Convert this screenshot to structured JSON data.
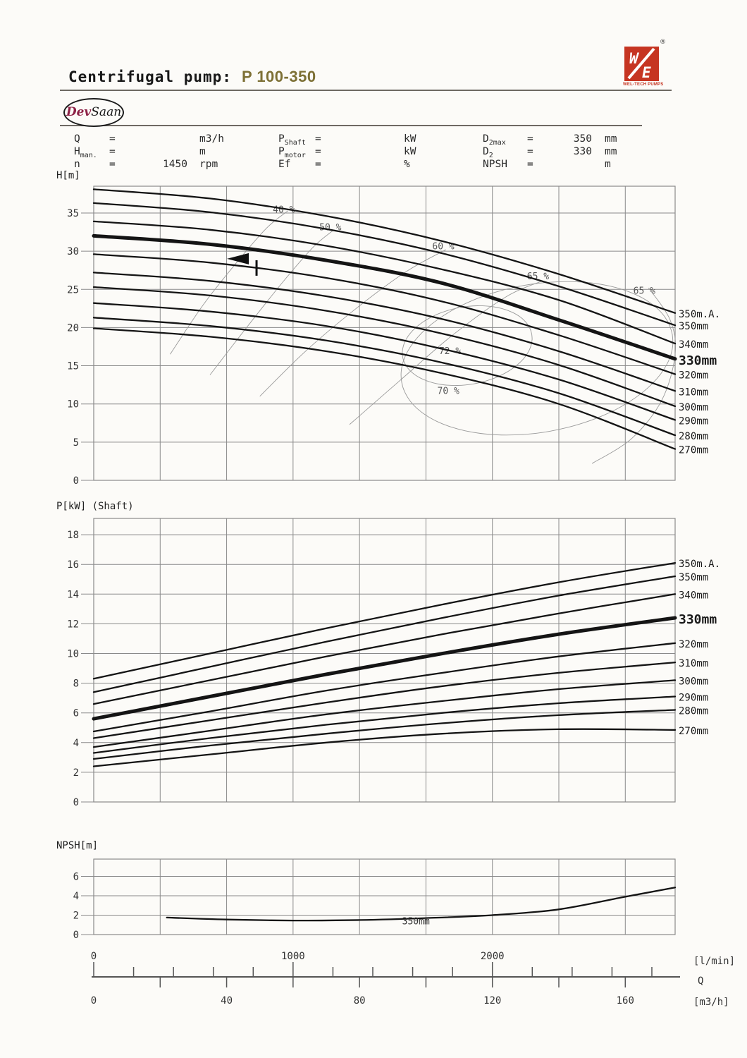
{
  "header": {
    "title": "Centrifugal pump:",
    "model": "P 100-350"
  },
  "brand": {
    "oval_logo_part1": "Dev",
    "oval_logo_part2": "Saan",
    "corner_logo_caption": "WEL-TECH PUMPS",
    "registered_mark": "®"
  },
  "colors": {
    "model_accent": "#7d7035",
    "logo_red": "#c63522",
    "devsaan_red": "#8d2146",
    "curve": "#141414",
    "grid": "#8a8a8a",
    "contour": "#9a9a9a"
  },
  "params": {
    "rows": [
      [
        {
          "base": "Q",
          "sub": "",
          "eq": "=",
          "value": "",
          "unit": "m3/h"
        },
        {
          "base": "P",
          "sub": "Shaft",
          "eq": "=",
          "value": "",
          "unit": "kW"
        },
        {
          "base": "D",
          "sub": "2max",
          "eq": "=",
          "value": "350",
          "unit": "mm"
        }
      ],
      [
        {
          "base": "H",
          "sub": "man.",
          "eq": "=",
          "value": "",
          "unit": "m"
        },
        {
          "base": "P",
          "sub": "motor",
          "eq": "=",
          "value": "",
          "unit": "kW"
        },
        {
          "base": "D",
          "sub": "2",
          "eq": "=",
          "value": "330",
          "unit": "mm"
        }
      ],
      [
        {
          "base": "n",
          "sub": "",
          "eq": "=",
          "value": "1450",
          "unit": "rpm"
        },
        {
          "base": "Ef",
          "sub": "",
          "eq": "=",
          "value": "",
          "unit": "%"
        },
        {
          "base": "NPSH",
          "sub": "",
          "eq": "=",
          "value": "",
          "unit": "m"
        }
      ]
    ]
  },
  "chart_data": [
    {
      "type": "line",
      "name": "head-flow-curves",
      "ylabel": "H[m]",
      "xlim": [
        0,
        175
      ],
      "ylim": [
        0,
        38.5
      ],
      "x_grid_step": 20,
      "y_ticks": [
        0,
        5,
        10,
        15,
        20,
        25,
        30,
        35
      ],
      "x": [
        0,
        35,
        70,
        105,
        140,
        175
      ],
      "series": [
        {
          "name": "350m.A.",
          "values": [
            38.1,
            36.9,
            34.6,
            31.3,
            27.0,
            21.9
          ]
        },
        {
          "name": "350mm",
          "values": [
            36.3,
            35.1,
            32.9,
            29.7,
            25.4,
            20.3
          ]
        },
        {
          "name": "340mm",
          "values": [
            33.9,
            32.8,
            30.7,
            27.6,
            23.6,
            17.9
          ]
        },
        {
          "name": "330mm",
          "values": [
            32.0,
            30.9,
            28.8,
            25.8,
            21.0,
            15.9
          ],
          "emphasis": true
        },
        {
          "name": "320mm",
          "values": [
            29.6,
            28.5,
            26.5,
            23.4,
            19.0,
            13.9
          ]
        },
        {
          "name": "310mm",
          "values": [
            27.2,
            26.1,
            24.1,
            21.1,
            16.9,
            11.7
          ]
        },
        {
          "name": "300mm",
          "values": [
            25.3,
            24.2,
            22.2,
            19.2,
            15.1,
            9.7
          ]
        },
        {
          "name": "290mm",
          "values": [
            23.2,
            22.1,
            20.2,
            17.2,
            13.2,
            7.9
          ]
        },
        {
          "name": "280mm",
          "values": [
            21.3,
            20.2,
            18.3,
            15.4,
            11.4,
            5.9
          ]
        },
        {
          "name": "270mm",
          "values": [
            19.9,
            18.8,
            16.9,
            14.0,
            10.0,
            4.1
          ]
        }
      ],
      "efficiency_labels": [
        {
          "text": "40 %",
          "q": 59,
          "v": 35.4
        },
        {
          "text": "50 %",
          "q": 73,
          "v": 33.1
        },
        {
          "text": "60 %",
          "q": 107,
          "v": 30.6
        },
        {
          "text": "65 %",
          "q": 135.5,
          "v": 26.7
        },
        {
          "text": "65 %",
          "q": 167.5,
          "v": 24.8
        },
        {
          "text": "72 %",
          "q": 109,
          "v": 16.9
        },
        {
          "text": "70 %",
          "q": 108.5,
          "v": 11.7
        }
      ],
      "duty_marker": {
        "q": 40.1,
        "v": 29.0
      }
    },
    {
      "type": "line",
      "name": "shaft-power-curves",
      "ylabel": "P[kW] (Shaft)",
      "xlim": [
        0,
        175
      ],
      "ylim": [
        0,
        19.1
      ],
      "x_grid_step": 20,
      "y_ticks": [
        0,
        2,
        4,
        6,
        8,
        10,
        12,
        14,
        16,
        18
      ],
      "x": [
        0,
        35,
        70,
        105,
        140,
        175
      ],
      "series": [
        {
          "name": "350m.A.",
          "values": [
            8.3,
            10.0,
            11.7,
            13.3,
            14.8,
            16.1
          ]
        },
        {
          "name": "350mm",
          "values": [
            7.4,
            9.1,
            10.8,
            12.4,
            13.9,
            15.2
          ]
        },
        {
          "name": "340mm",
          "values": [
            6.6,
            8.2,
            9.8,
            11.3,
            12.7,
            14.0
          ]
        },
        {
          "name": "330mm",
          "values": [
            5.6,
            7.1,
            8.6,
            10.0,
            11.3,
            12.4
          ],
          "emphasis": true
        },
        {
          "name": "320mm",
          "values": [
            4.75,
            6.1,
            7.5,
            8.7,
            9.8,
            10.7
          ]
        },
        {
          "name": "310mm",
          "values": [
            4.3,
            5.5,
            6.7,
            7.8,
            8.7,
            9.4
          ]
        },
        {
          "name": "300mm",
          "values": [
            3.7,
            4.8,
            5.9,
            6.8,
            7.6,
            8.2
          ]
        },
        {
          "name": "290mm",
          "values": [
            3.3,
            4.3,
            5.2,
            6.0,
            6.65,
            7.1
          ]
        },
        {
          "name": "280mm",
          "values": [
            2.9,
            3.8,
            4.6,
            5.3,
            5.85,
            6.2
          ]
        },
        {
          "name": "270mm",
          "values": [
            2.4,
            3.2,
            4.0,
            4.6,
            4.9,
            4.85
          ]
        }
      ]
    },
    {
      "type": "line",
      "name": "npsh-curve",
      "ylabel": "NPSH[m]",
      "xlim": [
        0,
        175
      ],
      "ylim": [
        0,
        7.8
      ],
      "x_grid_step": 20,
      "y_ticks": [
        0,
        2,
        4,
        6
      ],
      "x": [
        22,
        40,
        60,
        80,
        100,
        120,
        140,
        160,
        175
      ],
      "series": [
        {
          "name": "350mm",
          "values": [
            1.75,
            1.55,
            1.45,
            1.5,
            1.7,
            2.0,
            2.6,
            3.9,
            4.85
          ]
        }
      ],
      "curve_label": {
        "text": "350mm",
        "q": 97.5,
        "v": 1.05
      }
    }
  ],
  "axis": {
    "unit_top": "[l/min]",
    "q_label": "Q",
    "unit_bottom": "[m3/h]",
    "top_ticks": [
      {
        "label": "0",
        "lmin": 0
      },
      {
        "label": "1000",
        "lmin": 1000
      },
      {
        "label": "2000",
        "lmin": 2000
      }
    ],
    "bottom_ticks": [
      {
        "label": "0",
        "q": 0
      },
      {
        "label": "40",
        "q": 40
      },
      {
        "label": "80",
        "q": 80
      },
      {
        "label": "120",
        "q": 120
      },
      {
        "label": "160",
        "q": 160
      }
    ]
  }
}
